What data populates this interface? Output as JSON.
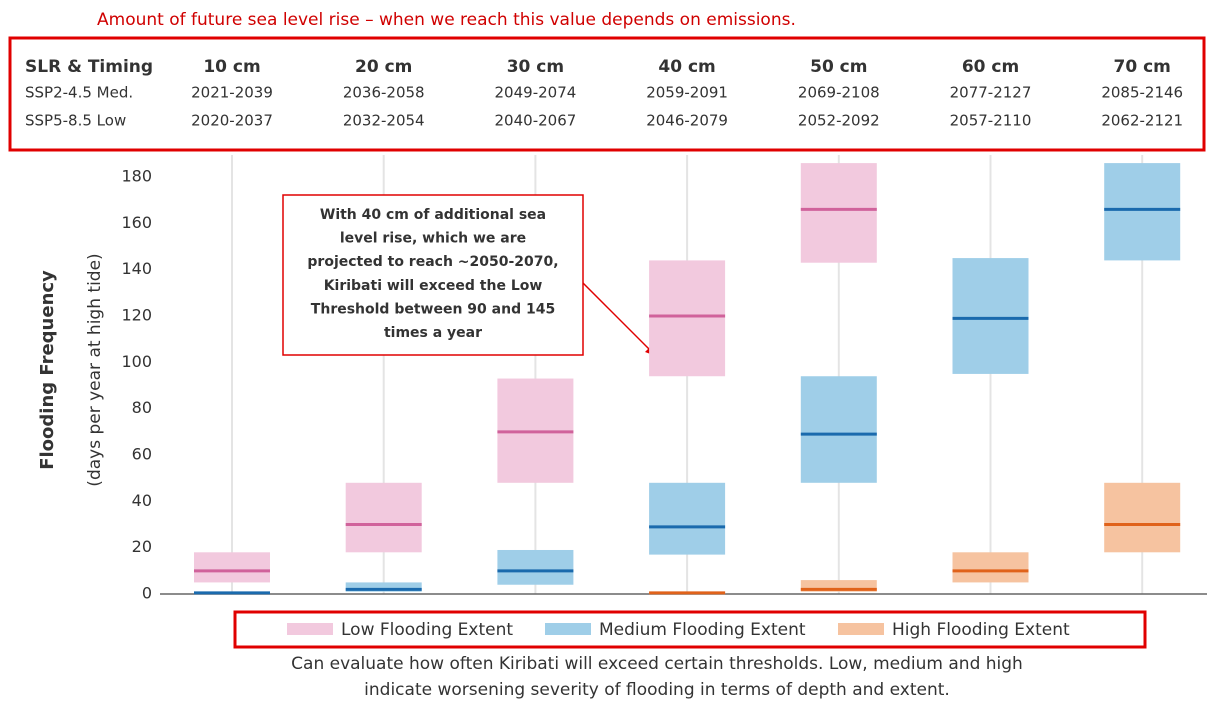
{
  "chart_data": {
    "type": "range",
    "top_note": "Amount of future sea level rise – when we reach this value depends on emissions.",
    "ylabel": "Flooding Frequency",
    "ylabel_sub": "(days per year at high tide)",
    "categories": [
      "10 cm",
      "20 cm",
      "30 cm",
      "40 cm",
      "50 cm",
      "60 cm",
      "70 cm"
    ],
    "ylim": [
      0,
      180
    ],
    "yticks": [
      0,
      20,
      40,
      60,
      80,
      100,
      120,
      140,
      160,
      180
    ],
    "series": [
      {
        "name": "Low Flooding Extent",
        "color": "#d0629b",
        "fill": "#f2c9de",
        "low": [
          5,
          18,
          48,
          94,
          143,
          null,
          null
        ],
        "median": [
          10,
          30,
          70,
          120,
          166,
          null,
          null
        ],
        "high": [
          18,
          48,
          93,
          144,
          186,
          null,
          null
        ]
      },
      {
        "name": "Medium Flooding Extent",
        "color": "#1a6aad",
        "fill": "#9fcee8",
        "low": [
          0,
          1,
          4,
          17,
          48,
          95,
          144
        ],
        "median": [
          0.5,
          2,
          10,
          29,
          69,
          119,
          166
        ],
        "high": [
          1,
          5,
          19,
          48,
          94,
          145,
          186
        ]
      },
      {
        "name": "High Flooding Extent",
        "color": "#e0621a",
        "fill": "#f6c3a0",
        "low": [
          null,
          null,
          null,
          0,
          1,
          5,
          18
        ],
        "median": [
          null,
          null,
          null,
          0.5,
          2,
          10,
          30
        ],
        "high": [
          null,
          null,
          null,
          1,
          6,
          18,
          48
        ]
      }
    ],
    "callout": [
      "With 40 cm of additional sea",
      "level rise, which we are",
      "projected to reach ~2050-2070,",
      "Kiribati will exceed the Low",
      "Threshold between 90 and 145",
      "times a year"
    ],
    "bottom_note": [
      "Can evaluate how often Kiribati will exceed certain thresholds. Low, medium and high",
      "indicate worsening severity of flooding in terms of depth and extent."
    ]
  },
  "table": {
    "corner": "SLR & Timing",
    "rows": [
      {
        "label": "SSP2-4.5 Med.",
        "values": [
          "2021-2039",
          "2036-2058",
          "2049-2074",
          "2059-2091",
          "2069-2108",
          "2077-2127",
          "2085-2146"
        ]
      },
      {
        "label": "SSP5-8.5 Low",
        "values": [
          "2020-2037",
          "2032-2054",
          "2040-2067",
          "2046-2079",
          "2052-2092",
          "2057-2110",
          "2062-2121"
        ]
      }
    ]
  }
}
